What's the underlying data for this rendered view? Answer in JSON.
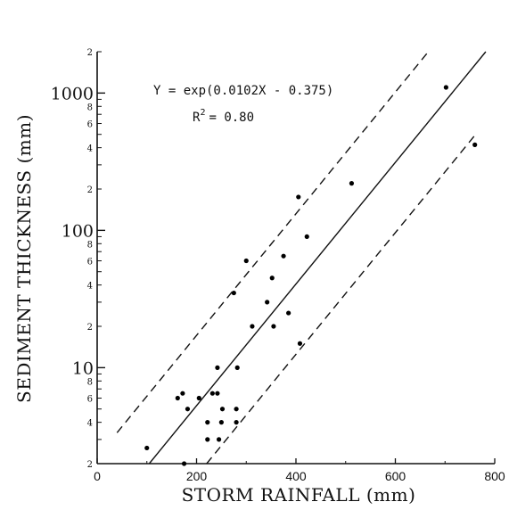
{
  "chart_data": {
    "type": "scatter",
    "xlabel": "STORM RAINFALL (mm)",
    "ylabel": "SEDIMENT THICKNESS (mm)",
    "xlim": [
      0,
      800
    ],
    "ylim": [
      2,
      2000
    ],
    "y_scale": "log",
    "x_ticks": [
      "0",
      "200",
      "400",
      "600",
      "800"
    ],
    "y_major_ticks": [
      "10",
      "100",
      "1000"
    ],
    "y_minor_ticks": [
      "2",
      "4",
      "6",
      "8",
      "2",
      "4",
      "6",
      "8",
      "2",
      "4",
      "6",
      "8",
      "2"
    ],
    "grid": false,
    "equation_text": "Y = exp(0.0102X - 0.375)",
    "r2_label": "R",
    "r2_exponent": "2",
    "r2_value": "= 0.80",
    "regression": {
      "a": 0.0102,
      "b": -0.375
    },
    "confidence_band_factor": 3.25,
    "points": [
      {
        "x": 100,
        "y": 2.6
      },
      {
        "x": 162,
        "y": 6.0
      },
      {
        "x": 172,
        "y": 6.5
      },
      {
        "x": 182,
        "y": 5.0
      },
      {
        "x": 175,
        "y": 2.0
      },
      {
        "x": 205,
        "y": 6.0
      },
      {
        "x": 222,
        "y": 4.0
      },
      {
        "x": 222,
        "y": 3.0
      },
      {
        "x": 232,
        "y": 6.5
      },
      {
        "x": 242,
        "y": 6.5
      },
      {
        "x": 242,
        "y": 10.0
      },
      {
        "x": 245,
        "y": 3.0
      },
      {
        "x": 250,
        "y": 4.0
      },
      {
        "x": 252,
        "y": 5.0
      },
      {
        "x": 275,
        "y": 35.0
      },
      {
        "x": 280,
        "y": 5.0
      },
      {
        "x": 280,
        "y": 4.0
      },
      {
        "x": 282,
        "y": 10.0
      },
      {
        "x": 300,
        "y": 60.0
      },
      {
        "x": 312,
        "y": 20.0
      },
      {
        "x": 342,
        "y": 30.0
      },
      {
        "x": 352,
        "y": 45.0
      },
      {
        "x": 355,
        "y": 20.0
      },
      {
        "x": 375,
        "y": 65.0
      },
      {
        "x": 385,
        "y": 25.0
      },
      {
        "x": 405,
        "y": 175.0
      },
      {
        "x": 408,
        "y": 15.0
      },
      {
        "x": 422,
        "y": 90.0
      },
      {
        "x": 512,
        "y": 220.0
      },
      {
        "x": 702,
        "y": 1100.0
      },
      {
        "x": 760,
        "y": 420.0
      }
    ]
  }
}
